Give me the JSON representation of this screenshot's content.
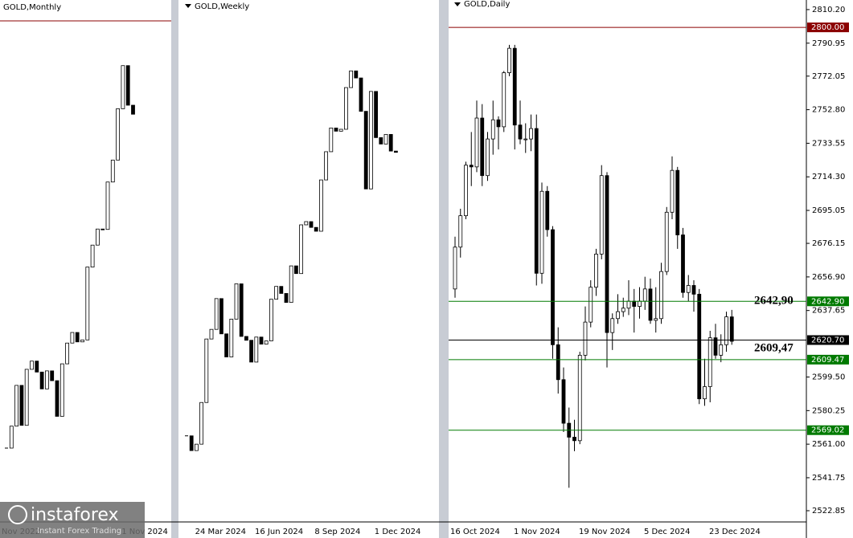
{
  "chart_data": [
    {
      "type": "candlestick",
      "title": "GOLD,Monthly",
      "categories": [
        "Nov 2022",
        null,
        null,
        null,
        null,
        null,
        null,
        null,
        null,
        null,
        null,
        null,
        null,
        null,
        null,
        null,
        null,
        null,
        null,
        null,
        null,
        null,
        null,
        null,
        "1 Nov 2024",
        null
      ],
      "close": [
        1768,
        1824,
        1928,
        1826,
        1969,
        1990,
        1962,
        1919,
        1965,
        1940,
        1849,
        1983,
        2036,
        2063,
        2039,
        2044,
        2230,
        2286,
        2327,
        2326,
        2447,
        2503,
        2634,
        2744,
        2643,
        2620
      ],
      "ylim": [
        1600,
        2850
      ]
    },
    {
      "type": "candlestick",
      "title": "GOLD,Weekly",
      "categories": [
        null,
        null,
        null,
        "24 Mar 2024",
        null,
        null,
        null,
        null,
        null,
        null,
        null,
        null,
        null,
        null,
        null,
        "16 Jun 2024",
        null,
        null,
        null,
        null,
        null,
        null,
        null,
        null,
        null,
        null,
        null,
        "8 Sep 2024",
        null,
        null,
        null,
        null,
        null,
        null,
        null,
        null,
        null,
        null,
        null,
        "1 Dec 2024",
        null,
        null,
        null
      ],
      "close": [
        2178,
        2155,
        2165,
        2230,
        2329,
        2344,
        2392,
        2337,
        2301,
        2360,
        2415,
        2333,
        2327,
        2293,
        2332,
        2321,
        2326,
        2391,
        2411,
        2400,
        2386,
        2443,
        2431,
        2507,
        2512,
        2503,
        2497,
        2577,
        2621,
        2658,
        2653,
        2656,
        2721,
        2747,
        2736,
        2684,
        2563,
        2715,
        2643,
        2633,
        2648,
        2622,
        2620
      ],
      "ylim": [
        2050,
        2820
      ]
    },
    {
      "type": "candlestick",
      "title": "GOLD,Daily",
      "categories": [
        "16 Oct 2024",
        null,
        null,
        null,
        null,
        null,
        null,
        null,
        null,
        null,
        null,
        null,
        "1 Nov 2024",
        null,
        null,
        null,
        null,
        null,
        null,
        null,
        null,
        null,
        null,
        null,
        "19 Nov 2024",
        null,
        null,
        null,
        null,
        null,
        null,
        null,
        null,
        null,
        null,
        null,
        "5 Dec 2024",
        null,
        null,
        null,
        null,
        null,
        null,
        null,
        null,
        null,
        null,
        null,
        "23 Dec 2024",
        null,
        null,
        null
      ],
      "open": [
        2650,
        2674,
        2692,
        2721,
        2720,
        2748,
        2715,
        2736,
        2747,
        2743,
        2774,
        2788,
        2744,
        2736,
        2736,
        2742,
        2659,
        2706,
        2684,
        2618,
        2598,
        2573,
        2565,
        2563,
        2612,
        2631,
        2651,
        2670,
        2715,
        2625,
        2633,
        2637,
        2639,
        2643,
        2640,
        2643,
        2650,
        2632,
        2633,
        2660,
        2694,
        2718,
        2681,
        2648,
        2652,
        2647,
        2587,
        2594,
        2622,
        2612,
        2618,
        2634
      ],
      "high": [
        2680,
        2696,
        2723,
        2740,
        2758,
        2756,
        2740,
        2758,
        2749,
        2775,
        2790,
        2790,
        2758,
        2745,
        2750,
        2750,
        2711,
        2709,
        2686,
        2628,
        2605,
        2582,
        2575,
        2614,
        2640,
        2655,
        2673,
        2721,
        2717,
        2636,
        2647,
        2645,
        2655,
        2650,
        2651,
        2657,
        2656,
        2651,
        2665,
        2697,
        2726,
        2720,
        2685,
        2658,
        2655,
        2650,
        2610,
        2626,
        2630,
        2624,
        2637,
        2638
      ],
      "low": [
        2645,
        2668,
        2690,
        2709,
        2717,
        2709,
        2712,
        2727,
        2730,
        2740,
        2772,
        2730,
        2733,
        2728,
        2729,
        2652,
        2653,
        2680,
        2610,
        2590,
        2568,
        2536,
        2557,
        2561,
        2609,
        2628,
        2646,
        2667,
        2605,
        2615,
        2630,
        2634,
        2635,
        2625,
        2633,
        2638,
        2630,
        2625,
        2630,
        2658,
        2690,
        2673,
        2645,
        2643,
        2637,
        2584,
        2583,
        2585,
        2610,
        2608,
        2614,
        2618
      ],
      "close": [
        2674,
        2692,
        2721,
        2720,
        2748,
        2715,
        2736,
        2747,
        2743,
        2774,
        2788,
        2744,
        2736,
        2736,
        2742,
        2659,
        2706,
        2684,
        2618,
        2598,
        2573,
        2565,
        2563,
        2612,
        2631,
        2651,
        2670,
        2715,
        2625,
        2633,
        2637,
        2639,
        2643,
        2640,
        2643,
        2650,
        2632,
        2633,
        2660,
        2694,
        2718,
        2681,
        2648,
        2652,
        2647,
        2587,
        2594,
        2622,
        2612,
        2618,
        2634,
        2620
      ],
      "ylim": [
        2516.4,
        2815.7
      ],
      "yticks": [
        {
          "value": 2810.2,
          "label": "2810.20"
        },
        {
          "value": 2790.95,
          "label": "2790.95"
        },
        {
          "value": 2772.05,
          "label": "2772.05"
        },
        {
          "value": 2752.8,
          "label": "2752.80"
        },
        {
          "value": 2733.55,
          "label": "2733.55"
        },
        {
          "value": 2714.3,
          "label": "2714.30"
        },
        {
          "value": 2695.05,
          "label": "2695.05"
        },
        {
          "value": 2676.15,
          "label": "2676.15"
        },
        {
          "value": 2656.9,
          "label": "2656.90"
        },
        {
          "value": 2637.65,
          "label": "2637.65"
        },
        {
          "value": 2599.5,
          "label": "2599.50"
        },
        {
          "value": 2580.25,
          "label": "2580.25"
        },
        {
          "value": 2561,
          "label": "2561.00"
        },
        {
          "value": 2541.75,
          "label": "2541.75"
        },
        {
          "value": 2522.85,
          "label": "2522.85"
        }
      ],
      "levels": [
        {
          "value": 2800,
          "label": "2800.00",
          "color": "#8b0000"
        },
        {
          "value": 2642.9,
          "label": "2642.90",
          "color": "#007a00",
          "callout": "2642,90"
        },
        {
          "value": 2620.7,
          "label": "2620.70",
          "color": "#000000"
        },
        {
          "value": 2609.47,
          "label": "2609.47",
          "color": "#007a00",
          "callout": "2609,47"
        },
        {
          "value": 2569.02,
          "label": "2569.02",
          "color": "#007a00"
        }
      ]
    }
  ],
  "logo": {
    "name": "instaforex",
    "tagline": "Instant Forex Trading"
  }
}
